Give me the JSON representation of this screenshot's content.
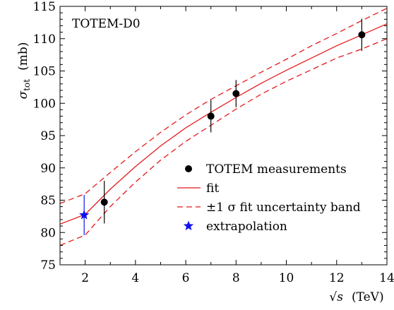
{
  "chart_data": {
    "type": "line",
    "annotation": "TOTEM-D0",
    "xlabel": {
      "symbol": "√s",
      "unit": "(TeV)"
    },
    "ylabel": {
      "symbol": "σ",
      "subscript": "tot",
      "unit": "(mb)"
    },
    "xlim": [
      1,
      14
    ],
    "ylim": [
      75,
      115
    ],
    "xticks": [
      2,
      4,
      6,
      8,
      10,
      12,
      14
    ],
    "yticks": [
      75,
      80,
      85,
      90,
      95,
      100,
      105,
      110,
      115
    ],
    "legend_position": "lower-right",
    "grid": false,
    "series": [
      {
        "name": "TOTEM measurements",
        "kind": "points",
        "color": "#000000",
        "x": [
          2.76,
          7,
          8,
          13
        ],
        "y": [
          84.7,
          98.0,
          101.5,
          110.6
        ],
        "err_low": [
          3.3,
          2.5,
          2.1,
          2.5
        ],
        "err_high": [
          3.3,
          2.5,
          2.1,
          2.5
        ]
      },
      {
        "name": "fit",
        "kind": "line",
        "color": "#e41a1c",
        "x": [
          1.0,
          2.0,
          3.0,
          4.0,
          5.0,
          6.0,
          7.0,
          8.0,
          9.0,
          10.0,
          11.0,
          12.0,
          13.0,
          14.0
        ],
        "y": [
          81.3,
          82.8,
          86.7,
          90.2,
          93.4,
          96.2,
          98.6,
          100.9,
          103.1,
          105.1,
          107.0,
          108.9,
          110.6,
          112.3
        ]
      },
      {
        "name": "±1 σ fit uncertainty band",
        "kind": "band",
        "color": "#e41a1c",
        "x": [
          1.0,
          2.0,
          3.0,
          4.0,
          5.0,
          6.0,
          7.0,
          8.0,
          9.0,
          10.0,
          11.0,
          12.0,
          13.0,
          14.0
        ],
        "upper": [
          84.5,
          86.0,
          89.3,
          92.5,
          95.5,
          98.2,
          100.6,
          102.7,
          104.8,
          106.8,
          108.9,
          110.8,
          112.8,
          114.7
        ],
        "lower": [
          78.0,
          79.6,
          84.0,
          87.8,
          91.2,
          94.1,
          96.6,
          99.1,
          101.4,
          103.4,
          105.2,
          107.0,
          108.4,
          110.0
        ]
      },
      {
        "name": "extrapolation",
        "kind": "points",
        "marker": "star",
        "color": "#1010ee",
        "x": [
          1.96
        ],
        "y": [
          82.7
        ],
        "err_low": [
          3.1
        ],
        "err_high": [
          3.1
        ]
      }
    ],
    "legend": [
      {
        "label": "TOTEM measurements",
        "symbol": "dot",
        "color": "#000000"
      },
      {
        "label": "fit",
        "symbol": "line",
        "color": "#e41a1c"
      },
      {
        "label": "±1 σ fit uncertainty band",
        "symbol": "dashed",
        "color": "#e41a1c"
      },
      {
        "label": "extrapolation",
        "symbol": "star",
        "color": "#1010ee"
      }
    ]
  }
}
